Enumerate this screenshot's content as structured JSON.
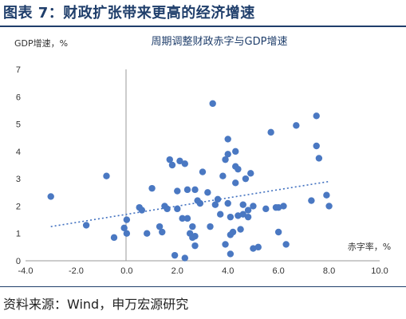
{
  "figure": {
    "title": "图表 7：财政扩张带来更高的经济增速",
    "source": "资料来源：Wind，申万宏源研究"
  },
  "chart_data": {
    "type": "scatter",
    "title": "周期调整财政赤字与GDP增速",
    "xlabel": "赤字率，%",
    "ylabel": "GDP增速，%",
    "xlim": [
      -4,
      10
    ],
    "ylim": [
      0,
      7
    ],
    "x_ticks": [
      "-4.0",
      "-2.0",
      "0.0",
      "2.0",
      "4.0",
      "6.0",
      "8.0",
      "10.0"
    ],
    "y_ticks": [
      "0",
      "1",
      "2",
      "3",
      "4",
      "5",
      "6",
      "7"
    ],
    "grid": false,
    "legend": "none",
    "colors": {
      "points": "#4a78c2",
      "trend": "#3f6fbf",
      "axis": "#999999"
    },
    "series": [
      {
        "x": [
          -3.0,
          -1.6,
          -0.8,
          -0.5,
          -0.1,
          0.0,
          0.0,
          0.5,
          0.6,
          0.8,
          1.0,
          1.3,
          1.4,
          1.5,
          1.6,
          1.7,
          1.8,
          1.9,
          2.0,
          2.0,
          2.1,
          2.2,
          2.3,
          2.3,
          2.4,
          2.4,
          2.5,
          2.6,
          2.6,
          2.7,
          2.7,
          2.7,
          2.8,
          2.9,
          3.0,
          3.2,
          3.3,
          3.4,
          3.5,
          3.6,
          3.7,
          3.8,
          3.9,
          3.9,
          4.0,
          4.0,
          4.0,
          4.1,
          4.1,
          4.1,
          4.2,
          4.3,
          4.3,
          4.3,
          4.4,
          4.4,
          4.5,
          4.6,
          4.6,
          4.7,
          4.8,
          4.8,
          4.9,
          5.0,
          5.0,
          5.2,
          5.5,
          5.7,
          5.9,
          6.0,
          6.0,
          6.2,
          6.3,
          6.7,
          7.3,
          7.5,
          7.5,
          7.6,
          7.9,
          8.0
        ],
        "y": [
          2.35,
          1.3,
          3.1,
          0.85,
          1.2,
          1.0,
          1.5,
          1.95,
          1.85,
          1.0,
          2.65,
          1.25,
          1.05,
          2.0,
          1.9,
          3.7,
          3.5,
          0.2,
          2.55,
          1.9,
          3.65,
          1.55,
          3.55,
          0.1,
          2.6,
          1.55,
          1.0,
          1.25,
          0.85,
          0.55,
          2.6,
          0.9,
          2.2,
          2.1,
          3.25,
          2.5,
          1.25,
          5.75,
          2.05,
          2.25,
          1.7,
          3.1,
          3.7,
          0.6,
          4.45,
          3.9,
          2.1,
          0.25,
          1.6,
          0.95,
          1.05,
          2.85,
          4.0,
          3.45,
          3.35,
          1.65,
          1.15,
          1.7,
          2.05,
          3.0,
          1.85,
          1.6,
          3.2,
          0.45,
          2.0,
          0.5,
          1.9,
          4.7,
          1.95,
          1.05,
          1.95,
          2.0,
          0.6,
          4.95,
          2.2,
          5.3,
          4.2,
          3.75,
          2.4,
          2.0
        ]
      }
    ],
    "trend": {
      "x": [
        -3.0,
        8.0
      ],
      "y": [
        1.25,
        2.9
      ]
    }
  }
}
